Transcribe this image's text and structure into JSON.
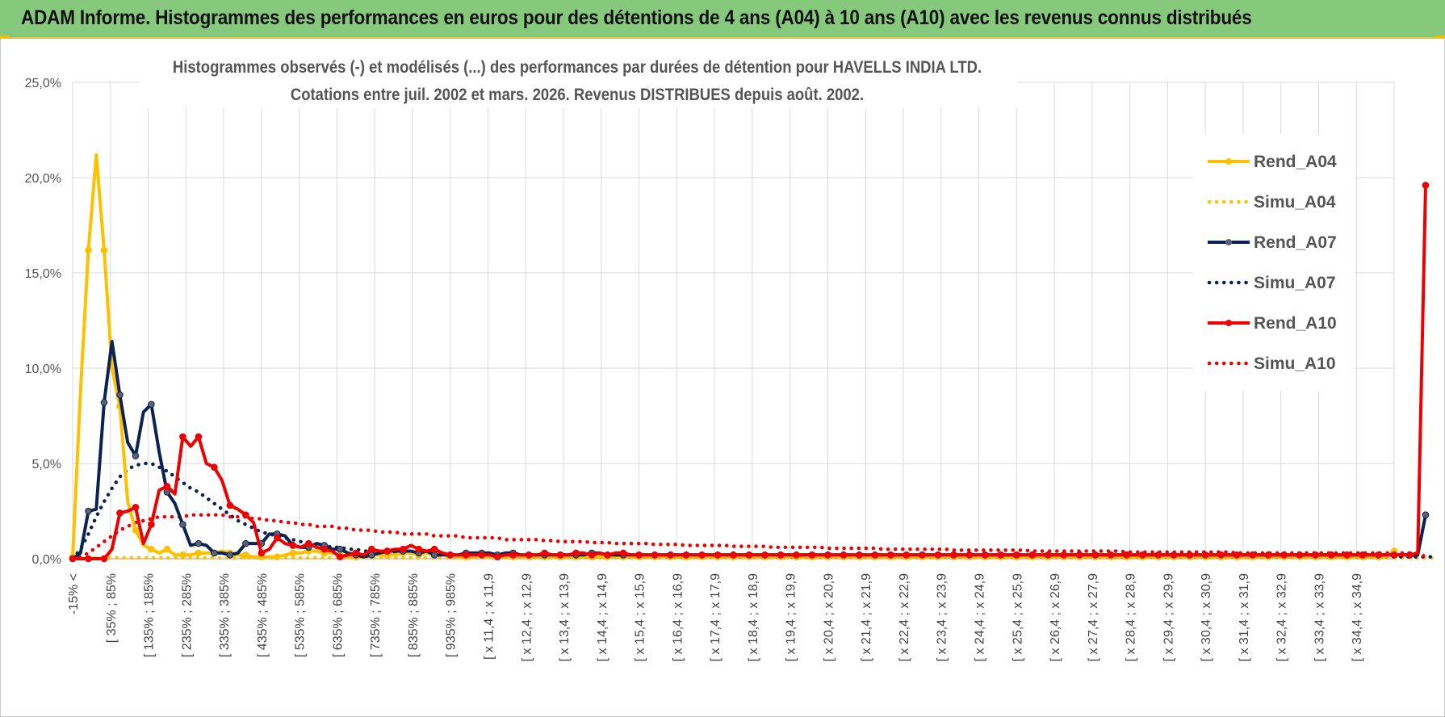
{
  "header": {
    "title": "ADAM Informe. Histogrammes des performances en euros pour des détentions de 4 ans (A04) à 10 ans (A10) avec les revenus connus distribués"
  },
  "colors": {
    "header_bg": "#86c97c",
    "a04": "#ffc000",
    "a07": "#0b2354",
    "a10": "#ee0000",
    "grid": "#d9d9d9"
  },
  "chart_data": {
    "type": "line",
    "title_line1": "Histogrammes observés (-) et modélisés (...) des performances par durées de détention pour HAVELLS INDIA LTD.",
    "title_line2": "Cotations entre juil. 2002 et mars. 2026.  Revenus DISTRIBUES depuis août. 2002.",
    "xlabel": "",
    "ylabel": "",
    "ylim": [
      0,
      25
    ],
    "y_ticks": [
      "0,0%",
      "5,0%",
      "10,0%",
      "15,0%",
      "20,0%",
      "25,0%"
    ],
    "x_tick_labels": [
      "-15% <",
      "[ 35% ; 85%",
      "[ 135% ; 185%",
      "[ 235% ; 285%",
      "[ 335% ; 385%",
      "[ 435% ; 485%",
      "[ 535% ; 585%",
      "[ 635% ; 685%",
      "[ 735% ; 785%",
      "[ 835% ; 885%",
      "[ 935% ; 985%",
      "[ x 11,4 ; x 11,9",
      "[ x 12,4 ; x 12,9",
      "[ x 13,4 ; x 13,9",
      "[ x 14,4 ; x 14,9",
      "[ x 15,4 ; x 15,9",
      "[ x 16,4 ; x 16,9",
      "[ x 17,4 ; x 17,9",
      "[ x 18,4 ; x 18,9",
      "[ x 19,4 ; x 19,9",
      "[ x 20,4 ; x 20,9",
      "[ x 21,4 ; x 21,9",
      "[ x 22,4 ; x 22,9",
      "[ x 23,4 ; x 23,9",
      "[ x 24,4 ; x 24,9",
      "[ x 25,4 ; x 25,9",
      "[ x 26,4 ; x 26,9",
      "[ x 27,4 ; x 27,9",
      "[ x 28,4 ; x 28,9",
      "[ x 29,4 ; x 29,9",
      "[ x 30,4 ; x 30,9",
      "[ x 31,4 ; x 31,9",
      "[ x 32,4 ; x 32,9",
      "[ x 33,4 ; x 33,9",
      "[ x 34,4 ; x 34,9"
    ],
    "legend_position": "right",
    "series": [
      {
        "name": "Rend_A04",
        "style": "solid",
        "color": "#ffc000",
        "values": [
          0.1,
          8.8,
          16.2,
          21.2,
          16.2,
          10.0,
          8.0,
          3.0,
          1.5,
          0.7,
          0.5,
          0.3,
          0.5,
          0.2,
          0.2,
          0.2,
          0.3,
          0.3,
          0.3,
          0.4,
          0.3,
          0.2,
          0.2,
          0.1,
          0.1,
          0.1,
          0.1,
          0.2,
          0.3,
          0.3,
          0.4,
          0.4,
          0.3,
          0.3,
          0.2,
          0.1,
          0.1,
          0.1,
          0.2,
          0.2,
          0.2,
          0.2,
          0.3,
          0.3,
          0.2,
          0.3,
          0.2,
          0.3,
          0.2,
          0.1,
          0.1,
          0.1,
          0.2,
          0.1,
          0.1,
          0.1,
          0.1,
          0.1,
          0.1,
          0.1,
          0.1,
          0.1,
          0.1,
          0.1,
          0.1,
          0.1,
          0.1,
          0.1,
          0.1,
          0.1,
          0.1,
          0.1,
          0.1,
          0.1,
          0.1,
          0.1,
          0.1,
          0.1,
          0.1,
          0.1,
          0.1,
          0.1,
          0.1,
          0.1,
          0.1,
          0.1,
          0.1,
          0.1,
          0.1,
          0.1,
          0.1,
          0.1,
          0.1,
          0.1,
          0.1,
          0.1,
          0.1,
          0.1,
          0.1,
          0.1,
          0.1,
          0.1,
          0.1,
          0.1,
          0.1,
          0.1,
          0.1,
          0.1,
          0.1,
          0.1,
          0.1,
          0.1,
          0.1,
          0.1,
          0.1,
          0.1,
          0.1,
          0.1,
          0.1,
          0.1,
          0.1,
          0.1,
          0.1,
          0.1,
          0.1,
          0.1,
          0.1,
          0.1,
          0.1,
          0.1,
          0.1,
          0.1,
          0.1,
          0.1,
          0.1,
          0.1,
          0.1,
          0.1,
          0.1,
          0.1,
          0.1,
          0.1,
          0.1,
          0.1,
          0.1,
          0.1,
          0.1,
          0.1,
          0.1,
          0.1,
          0.1,
          0.1,
          0.1,
          0.1,
          0.1,
          0.1,
          0.1,
          0.1,
          0.1,
          0.1,
          0.1,
          0.1,
          0.1,
          0.1,
          0.1,
          0.1,
          0.1,
          0.1,
          0.4
        ]
      },
      {
        "name": "Simu_A04",
        "style": "dotted",
        "color": "#ffc000",
        "values": [
          0.05,
          0.05,
          0.05,
          0.05,
          0.05,
          0.05,
          0.05,
          0.05,
          0.05,
          0.05,
          0.05,
          0.05,
          0.05,
          0.05,
          0.05,
          0.05,
          0.05,
          0.05,
          0.05,
          0.05,
          0.05,
          0.05,
          0.05,
          0.05,
          0.05,
          0.05,
          0.05,
          0.05,
          0.05,
          0.05,
          0.05,
          0.05,
          0.05,
          0.05,
          0.05,
          0.05,
          0.05,
          0.05,
          0.05,
          0.05,
          0.05,
          0.05,
          0.05,
          0.05,
          0.05,
          0.05,
          0.05,
          0.05,
          0.05,
          0.05,
          0.05,
          0.05,
          0.05,
          0.05,
          0.05,
          0.05,
          0.05,
          0.05,
          0.05,
          0.05,
          0.05,
          0.05,
          0.05,
          0.05,
          0.05,
          0.05,
          0.05,
          0.05,
          0.05,
          0.05,
          0.05,
          0.05,
          0.05,
          0.05,
          0.05,
          0.05,
          0.05,
          0.05,
          0.05,
          0.05,
          0.05,
          0.05,
          0.05,
          0.05,
          0.05,
          0.05,
          0.05,
          0.05,
          0.05,
          0.05,
          0.05,
          0.05,
          0.05,
          0.05,
          0.05,
          0.05,
          0.05,
          0.05,
          0.05,
          0.05,
          0.05,
          0.05,
          0.05,
          0.05,
          0.05,
          0.05,
          0.05,
          0.05,
          0.05,
          0.05,
          0.05,
          0.05,
          0.05,
          0.05,
          0.05,
          0.05,
          0.05,
          0.05,
          0.05,
          0.05,
          0.05,
          0.05,
          0.05,
          0.05,
          0.05,
          0.05,
          0.05,
          0.05,
          0.05,
          0.05,
          0.05,
          0.05,
          0.05,
          0.05,
          0.05,
          0.05,
          0.05,
          0.05,
          0.05,
          0.05,
          0.05,
          0.05,
          0.05,
          0.05,
          0.05,
          0.05,
          0.05,
          0.05,
          0.05,
          0.05,
          0.05,
          0.05,
          0.05,
          0.05,
          0.05,
          0.05,
          0.05,
          0.05,
          0.05,
          0.05,
          0.05,
          0.05,
          0.05,
          0.05,
          0.05,
          0.05,
          0.05,
          0.05,
          0.05,
          0.05,
          0.05,
          0.05,
          0.05,
          0.05
        ]
      },
      {
        "name": "Rend_A07",
        "style": "solid",
        "color": "#0b2354",
        "values": [
          0.0,
          0.3,
          2.5,
          2.6,
          8.2,
          11.4,
          8.6,
          6.1,
          5.4,
          7.7,
          8.1,
          5.6,
          3.5,
          2.9,
          1.8,
          0.7,
          0.8,
          0.7,
          0.3,
          0.3,
          0.2,
          0.3,
          0.8,
          0.8,
          0.8,
          1.3,
          1.3,
          1.2,
          0.7,
          0.6,
          0.6,
          0.8,
          0.7,
          0.5,
          0.5,
          0.3,
          0.2,
          0.1,
          0.2,
          0.3,
          0.4,
          0.4,
          0.4,
          0.4,
          0.3,
          0.4,
          0.2,
          0.2,
          0.2,
          0.2,
          0.3,
          0.3,
          0.3,
          0.3,
          0.2,
          0.3,
          0.3,
          0.2,
          0.2,
          0.2,
          0.2,
          0.2,
          0.2,
          0.2,
          0.2,
          0.2,
          0.3,
          0.3,
          0.2,
          0.2,
          0.2,
          0.2,
          0.2,
          0.2,
          0.2,
          0.2,
          0.2,
          0.2,
          0.2,
          0.2,
          0.2,
          0.2,
          0.2,
          0.2,
          0.2,
          0.2,
          0.2,
          0.2,
          0.2,
          0.2,
          0.2,
          0.2,
          0.2,
          0.2,
          0.2,
          0.2,
          0.2,
          0.2,
          0.2,
          0.2,
          0.2,
          0.2,
          0.2,
          0.2,
          0.2,
          0.2,
          0.2,
          0.2,
          0.2,
          0.2,
          0.2,
          0.2,
          0.2,
          0.2,
          0.2,
          0.2,
          0.2,
          0.2,
          0.2,
          0.2,
          0.2,
          0.2,
          0.2,
          0.2,
          0.2,
          0.2,
          0.2,
          0.2,
          0.2,
          0.2,
          0.2,
          0.2,
          0.2,
          0.2,
          0.2,
          0.2,
          0.2,
          0.2,
          0.2,
          0.2,
          0.2,
          0.2,
          0.2,
          0.2,
          0.2,
          0.2,
          0.2,
          0.2,
          0.2,
          0.2,
          0.2,
          0.2,
          0.2,
          0.2,
          0.2,
          0.2,
          0.2,
          0.2,
          0.2,
          0.2,
          0.2,
          0.2,
          0.2,
          0.2,
          0.2,
          0.2,
          0.2,
          0.2,
          0.2,
          0.2,
          0.2,
          0.2,
          2.3
        ]
      },
      {
        "name": "Simu_A07",
        "style": "dotted",
        "color": "#0b2354",
        "values": [
          0.0,
          0.5,
          1.3,
          2.2,
          3.0,
          3.7,
          4.3,
          4.7,
          4.9,
          5.0,
          5.0,
          4.8,
          4.6,
          4.3,
          4.0,
          3.7,
          3.5,
          3.2,
          2.9,
          2.6,
          2.3,
          2.0,
          1.8,
          1.6,
          1.4,
          1.3,
          1.2,
          1.1,
          1.0,
          0.9,
          0.8,
          0.7,
          0.7,
          0.6,
          0.6,
          0.5,
          0.5,
          0.4,
          0.4,
          0.4,
          0.3,
          0.3,
          0.3,
          0.3,
          0.3,
          0.3,
          0.2,
          0.2,
          0.2,
          0.2,
          0.2,
          0.2,
          0.2,
          0.2,
          0.2,
          0.2,
          0.1,
          0.1,
          0.1,
          0.1,
          0.1,
          0.1,
          0.1,
          0.1,
          0.1,
          0.1,
          0.1,
          0.1,
          0.1,
          0.1,
          0.1,
          0.1,
          0.1,
          0.1,
          0.1,
          0.1,
          0.1,
          0.1,
          0.1,
          0.1,
          0.1,
          0.1,
          0.1,
          0.1,
          0.1,
          0.1,
          0.1,
          0.1,
          0.1,
          0.1,
          0.1,
          0.1,
          0.1,
          0.1,
          0.1,
          0.1,
          0.1,
          0.1,
          0.1,
          0.1,
          0.1,
          0.1,
          0.1,
          0.1,
          0.1,
          0.1,
          0.1,
          0.1,
          0.1,
          0.1,
          0.1,
          0.1,
          0.1,
          0.1,
          0.1,
          0.1,
          0.1,
          0.1,
          0.1,
          0.1,
          0.1,
          0.1,
          0.1,
          0.1,
          0.1,
          0.1,
          0.1,
          0.1,
          0.1,
          0.1,
          0.1,
          0.1,
          0.1,
          0.1,
          0.1,
          0.1,
          0.1,
          0.1,
          0.1,
          0.1,
          0.1,
          0.1,
          0.1,
          0.1,
          0.1,
          0.1,
          0.1,
          0.1,
          0.1,
          0.1,
          0.1,
          0.1,
          0.1,
          0.1,
          0.1,
          0.1,
          0.1,
          0.1,
          0.1,
          0.1,
          0.1,
          0.1,
          0.1,
          0.1,
          0.1,
          0.1,
          0.1,
          0.1,
          0.1,
          0.1,
          0.1,
          0.1,
          0.1,
          0.1
        ]
      },
      {
        "name": "Rend_A10",
        "style": "solid",
        "color": "#ee0000",
        "values": [
          0.0,
          0.0,
          0.0,
          0.0,
          0.0,
          0.5,
          2.4,
          2.5,
          2.7,
          0.8,
          1.8,
          3.6,
          3.8,
          3.4,
          6.4,
          5.9,
          6.4,
          5.0,
          4.8,
          4.1,
          2.8,
          2.6,
          2.3,
          1.9,
          0.3,
          0.5,
          1.1,
          0.8,
          0.7,
          0.6,
          0.8,
          0.6,
          0.5,
          0.4,
          0.1,
          0.2,
          0.3,
          0.2,
          0.5,
          0.4,
          0.4,
          0.5,
          0.5,
          0.7,
          0.5,
          0.4,
          0.5,
          0.3,
          0.2,
          0.2,
          0.2,
          0.2,
          0.2,
          0.2,
          0.1,
          0.2,
          0.2,
          0.2,
          0.2,
          0.2,
          0.3,
          0.2,
          0.2,
          0.2,
          0.3,
          0.3,
          0.2,
          0.3,
          0.2,
          0.3,
          0.3,
          0.2,
          0.2,
          0.2,
          0.2,
          0.2,
          0.2,
          0.2,
          0.2,
          0.2,
          0.2,
          0.2,
          0.2,
          0.2,
          0.2,
          0.2,
          0.2,
          0.2,
          0.2,
          0.2,
          0.2,
          0.2,
          0.2,
          0.2,
          0.2,
          0.2,
          0.2,
          0.2,
          0.2,
          0.2,
          0.2,
          0.2,
          0.2,
          0.2,
          0.2,
          0.2,
          0.2,
          0.2,
          0.2,
          0.2,
          0.2,
          0.2,
          0.2,
          0.2,
          0.2,
          0.2,
          0.2,
          0.2,
          0.2,
          0.2,
          0.2,
          0.2,
          0.2,
          0.2,
          0.2,
          0.2,
          0.2,
          0.2,
          0.2,
          0.2,
          0.2,
          0.2,
          0.2,
          0.2,
          0.2,
          0.2,
          0.2,
          0.2,
          0.2,
          0.2,
          0.2,
          0.2,
          0.2,
          0.2,
          0.2,
          0.2,
          0.2,
          0.2,
          0.2,
          0.2,
          0.2,
          0.2,
          0.2,
          0.2,
          0.2,
          0.2,
          0.2,
          0.2,
          0.2,
          0.2,
          0.2,
          0.2,
          0.2,
          0.2,
          0.2,
          0.2,
          0.2,
          0.2,
          0.2,
          0.2,
          0.2,
          0.3,
          19.6
        ]
      },
      {
        "name": "Simu_A10",
        "style": "dotted",
        "color": "#ee0000",
        "values": [
          0.0,
          0.1,
          0.3,
          0.6,
          0.9,
          1.2,
          1.5,
          1.7,
          1.9,
          2.0,
          2.1,
          2.2,
          2.2,
          2.2,
          2.2,
          2.3,
          2.3,
          2.3,
          2.3,
          2.3,
          2.2,
          2.2,
          2.2,
          2.1,
          2.1,
          2.0,
          2.0,
          1.9,
          1.9,
          1.8,
          1.8,
          1.7,
          1.7,
          1.7,
          1.6,
          1.6,
          1.5,
          1.5,
          1.5,
          1.4,
          1.4,
          1.4,
          1.3,
          1.3,
          1.3,
          1.3,
          1.2,
          1.2,
          1.2,
          1.2,
          1.1,
          1.1,
          1.1,
          1.1,
          1.1,
          1.0,
          1.0,
          1.0,
          1.0,
          1.0,
          0.95,
          0.95,
          0.9,
          0.9,
          0.9,
          0.9,
          0.85,
          0.85,
          0.85,
          0.8,
          0.8,
          0.8,
          0.8,
          0.8,
          0.75,
          0.75,
          0.75,
          0.75,
          0.7,
          0.7,
          0.7,
          0.7,
          0.7,
          0.7,
          0.65,
          0.65,
          0.65,
          0.65,
          0.65,
          0.6,
          0.6,
          0.6,
          0.6,
          0.6,
          0.6,
          0.6,
          0.55,
          0.55,
          0.55,
          0.55,
          0.55,
          0.55,
          0.55,
          0.5,
          0.5,
          0.5,
          0.5,
          0.5,
          0.5,
          0.5,
          0.5,
          0.5,
          0.45,
          0.45,
          0.45,
          0.45,
          0.45,
          0.45,
          0.45,
          0.45,
          0.45,
          0.45,
          0.4,
          0.4,
          0.4,
          0.4,
          0.4,
          0.4,
          0.4,
          0.4,
          0.4,
          0.4,
          0.4,
          0.4,
          0.35,
          0.35,
          0.35,
          0.35,
          0.35,
          0.35,
          0.35,
          0.35,
          0.35,
          0.35,
          0.35,
          0.35,
          0.35,
          0.35,
          0.3,
          0.3,
          0.3,
          0.3,
          0.3,
          0.3,
          0.3,
          0.3,
          0.3,
          0.3,
          0.3,
          0.3,
          0.3,
          0.3,
          0.3,
          0.3,
          0.3,
          0.3,
          0.3,
          0.3,
          0.3,
          0.3,
          0.3,
          0.3,
          0.1
        ]
      }
    ]
  }
}
